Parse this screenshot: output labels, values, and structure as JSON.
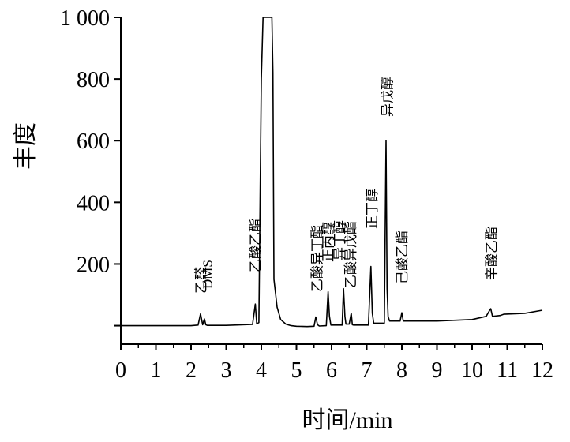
{
  "chart_data": {
    "type": "line",
    "xlabel": "时间/min",
    "ylabel": "丰度",
    "xlim": [
      0,
      12
    ],
    "ylim": [
      -60,
      1000
    ],
    "x_ticks": [
      0,
      1,
      2,
      3,
      4,
      5,
      6,
      7,
      8,
      9,
      10,
      11,
      12
    ],
    "x_tick_labels": [
      "0",
      "1",
      "2",
      "3",
      "4",
      "5",
      "6",
      "7",
      "8",
      "9",
      "10",
      "11",
      "12"
    ],
    "y_ticks": [
      0,
      200,
      400,
      600,
      800,
      1000
    ],
    "y_tick_labels": [
      "",
      "200",
      "400",
      "600",
      "800",
      "1 000"
    ],
    "grid": false,
    "series": [
      {
        "x": [
          0.0,
          1.0,
          2.0,
          2.2,
          2.27,
          2.33,
          2.38,
          2.42,
          2.46,
          3.0,
          3.75,
          3.83,
          3.87,
          3.93,
          4.0,
          4.05,
          4.08,
          4.3,
          4.33,
          4.36,
          4.45,
          4.55,
          4.7,
          4.85,
          5.0,
          5.3,
          5.5,
          5.55,
          5.6,
          5.65,
          5.85,
          5.9,
          5.94,
          5.98,
          6.3,
          6.34,
          6.38,
          6.41,
          6.5,
          6.56,
          6.59,
          6.63,
          7.05,
          7.12,
          7.16,
          7.2,
          7.5,
          7.55,
          7.58,
          7.61,
          7.65,
          7.95,
          8.0,
          8.04,
          8.1,
          9.0,
          10.0,
          10.4,
          10.5,
          10.53,
          10.58,
          10.8,
          10.9,
          11.5,
          12.0
        ],
        "y": [
          0,
          0,
          0,
          2,
          38,
          3,
          22,
          3,
          1,
          1,
          4,
          70,
          6,
          10,
          800,
          1000,
          1000,
          1000,
          820,
          150,
          60,
          20,
          5,
          0,
          -2,
          -3,
          -2,
          28,
          3,
          -1,
          0,
          110,
          30,
          2,
          2,
          120,
          30,
          5,
          5,
          40,
          3,
          2,
          2,
          192,
          40,
          8,
          8,
          600,
          120,
          30,
          15,
          15,
          42,
          15,
          15,
          15,
          20,
          30,
          50,
          55,
          30,
          33,
          37,
          40,
          50
        ]
      }
    ],
    "annotations": [
      {
        "text": "乙醛",
        "x": 2.28
      },
      {
        "text": "DMS",
        "x": 2.46
      },
      {
        "text": "乙酸乙酯",
        "x": 3.83
      },
      {
        "text": "乙酸异丁酯",
        "x": 5.58
      },
      {
        "text": "正丙醇",
        "x": 5.9
      },
      {
        "text": "异丁醇",
        "x": 6.22
      },
      {
        "text": "乙酸异戊酯",
        "x": 6.54
      },
      {
        "text": "正丁醇",
        "x": 7.15
      },
      {
        "text": "异戊醇",
        "x": 7.58
      },
      {
        "text": "己酸乙酯",
        "x": 8.0
      },
      {
        "text": "辛酸乙酯",
        "x": 10.55
      }
    ]
  }
}
